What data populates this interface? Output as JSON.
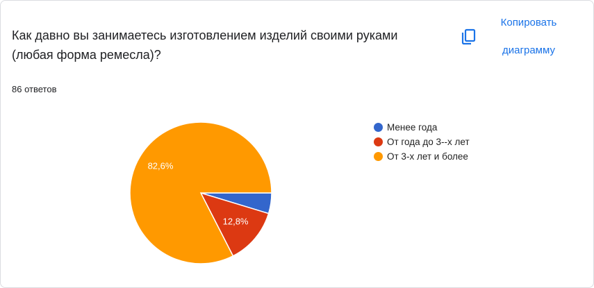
{
  "question": {
    "title": "Как давно вы занимаетесь изготовлением изделий своими руками (любая форма ремесла)?",
    "response_count": "86 ответов"
  },
  "actions": {
    "copy_line1": "Копировать",
    "copy_line2": "диаграмму",
    "copy_icon": "copy-icon"
  },
  "chart_data": {
    "type": "pie",
    "slices": [
      {
        "label": "Менее года",
        "value": 4.7,
        "color": "#3366cc",
        "display": ""
      },
      {
        "label": "От года до 3--х лет",
        "value": 12.8,
        "color": "#dc3912",
        "display": "12,8%"
      },
      {
        "label": "От 3-х лет и более",
        "value": 82.6,
        "color": "#ff9900",
        "display": "82,6%"
      }
    ],
    "legend_position": "right"
  }
}
